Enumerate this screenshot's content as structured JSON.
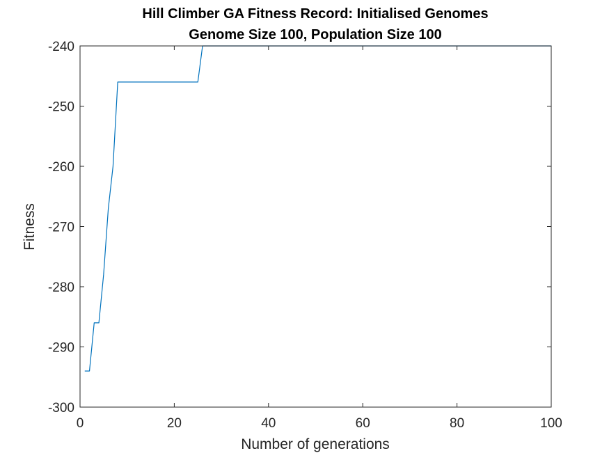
{
  "chart_data": {
    "type": "line",
    "title": [
      "Hill Climber GA Fitness Record: Initialised Genomes",
      "Genome Size 100, Population Size 100"
    ],
    "xlabel": "Number of generations",
    "ylabel": "Fitness",
    "xlim": [
      0,
      100
    ],
    "ylim": [
      -300,
      -240
    ],
    "xticks": [
      0,
      20,
      40,
      60,
      80,
      100
    ],
    "yticks": [
      -300,
      -290,
      -280,
      -270,
      -260,
      -250,
      -240
    ],
    "xtick_labels": [
      "0",
      "20",
      "40",
      "60",
      "80",
      "100"
    ],
    "ytick_labels": [
      "-300",
      "-290",
      "-280",
      "-270",
      "-260",
      "-250",
      "-240"
    ],
    "grid": false,
    "series": [
      {
        "name": "Fitness",
        "color": "#0072BD",
        "x": [
          1,
          2,
          3,
          4,
          5,
          6,
          7,
          8,
          9,
          10,
          11,
          12,
          13,
          14,
          15,
          16,
          17,
          18,
          19,
          20,
          21,
          22,
          23,
          24,
          25,
          26,
          27,
          28,
          29,
          30,
          40,
          50,
          60,
          70,
          80,
          90,
          100
        ],
        "y": [
          -294,
          -294,
          -286,
          -286,
          -278,
          -267,
          -260,
          -246,
          -246,
          -246,
          -246,
          -246,
          -246,
          -246,
          -246,
          -246,
          -246,
          -246,
          -246,
          -246,
          -246,
          -246,
          -246,
          -246,
          -246,
          -240,
          -240,
          -240,
          -240,
          -240,
          -240,
          -240,
          -240,
          -240,
          -240,
          -240,
          -240
        ]
      }
    ]
  }
}
